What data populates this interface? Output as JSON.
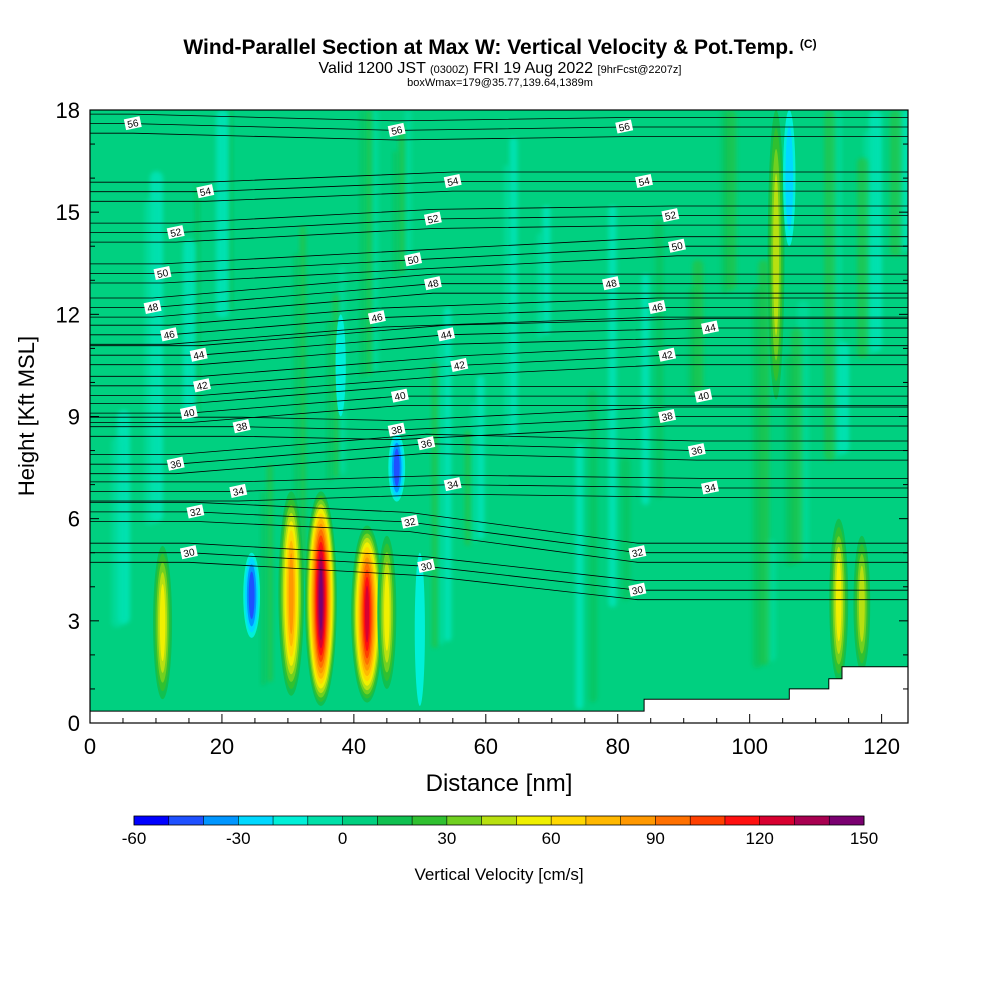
{
  "header": {
    "title": "Wind-Parallel Section at Max W: Vertical Velocity & Pot.Temp.",
    "title_tag": "(C)",
    "valid_prefix": "Valid 1200 JST",
    "valid_utc": "(0300Z)",
    "valid_date": "FRI 19 Aug 2022",
    "forecast_tag": "[9hrFcst@2207z]",
    "box_info": "boxWmax=179@35.77,139.64,1389m"
  },
  "chart_data": {
    "type": "heatmap",
    "xlabel": "Distance [nm]",
    "ylabel": "Height [Kft MSL]",
    "xlim": [
      0,
      124
    ],
    "ylim": [
      0,
      18
    ],
    "x_ticks": [
      0,
      20,
      40,
      60,
      80,
      100,
      120
    ],
    "y_ticks": [
      0,
      3,
      6,
      9,
      12,
      15,
      18
    ],
    "grid": false,
    "background_value": 0,
    "updrafts": [
      {
        "x": 11,
        "bottom": 0.7,
        "top": 5.2,
        "peak": 50
      },
      {
        "x": 30.5,
        "bottom": 0.8,
        "top": 6.8,
        "peak": 80
      },
      {
        "x": 35,
        "bottom": 0.5,
        "top": 6.8,
        "peak": 145
      },
      {
        "x": 42,
        "bottom": 0.6,
        "top": 5.8,
        "peak": 125
      },
      {
        "x": 45,
        "bottom": 1.0,
        "top": 5.5,
        "peak": 50
      },
      {
        "x": 113.5,
        "bottom": 1.2,
        "top": 6.0,
        "peak": 50
      },
      {
        "x": 117,
        "bottom": 1.5,
        "top": 5.5,
        "peak": 45
      },
      {
        "x": 104,
        "bottom": 9.5,
        "top": 18,
        "peak": 40
      }
    ],
    "downdrafts": [
      {
        "x": 24.5,
        "bottom": 2.5,
        "top": 5,
        "peak": -45
      },
      {
        "x": 46.5,
        "bottom": 6.5,
        "top": 8.5,
        "peak": -45
      },
      {
        "x": 38,
        "bottom": 9,
        "top": 12,
        "peak": -15
      },
      {
        "x": 106,
        "bottom": 14,
        "top": 18,
        "peak": -25
      },
      {
        "x": 50,
        "bottom": 0.5,
        "top": 5,
        "peak": -15
      }
    ],
    "pot_temp_labels": [
      {
        "v": "56",
        "x": 6.5,
        "y": 17.6
      },
      {
        "v": "56",
        "x": 46.5,
        "y": 17.4
      },
      {
        "v": "56",
        "x": 81,
        "y": 17.5
      },
      {
        "v": "54",
        "x": 17.5,
        "y": 15.6
      },
      {
        "v": "54",
        "x": 55,
        "y": 15.9
      },
      {
        "v": "54",
        "x": 84,
        "y": 15.9
      },
      {
        "v": "52",
        "x": 13,
        "y": 14.4
      },
      {
        "v": "52",
        "x": 52,
        "y": 14.8
      },
      {
        "v": "52",
        "x": 88,
        "y": 14.9
      },
      {
        "v": "50",
        "x": 11,
        "y": 13.2
      },
      {
        "v": "50",
        "x": 49,
        "y": 13.6
      },
      {
        "v": "50",
        "x": 89,
        "y": 14.0
      },
      {
        "v": "48",
        "x": 9.5,
        "y": 12.2
      },
      {
        "v": "48",
        "x": 52,
        "y": 12.9
      },
      {
        "v": "48",
        "x": 79,
        "y": 12.9
      },
      {
        "v": "46",
        "x": 12,
        "y": 11.4
      },
      {
        "v": "46",
        "x": 43.5,
        "y": 11.9
      },
      {
        "v": "46",
        "x": 86,
        "y": 12.2
      },
      {
        "v": "44",
        "x": 16.5,
        "y": 10.8
      },
      {
        "v": "44",
        "x": 54,
        "y": 11.4
      },
      {
        "v": "44",
        "x": 94,
        "y": 11.6
      },
      {
        "v": "42",
        "x": 17,
        "y": 9.9
      },
      {
        "v": "42",
        "x": 56,
        "y": 10.5
      },
      {
        "v": "42",
        "x": 87.5,
        "y": 10.8
      },
      {
        "v": "40",
        "x": 15,
        "y": 9.1
      },
      {
        "v": "40",
        "x": 47,
        "y": 9.6
      },
      {
        "v": "40",
        "x": 93,
        "y": 9.6
      },
      {
        "v": "38",
        "x": 23,
        "y": 8.7
      },
      {
        "v": "38",
        "x": 46.5,
        "y": 8.6
      },
      {
        "v": "38",
        "x": 87.5,
        "y": 9.0
      },
      {
        "v": "36",
        "x": 13,
        "y": 7.6
      },
      {
        "v": "36",
        "x": 51,
        "y": 8.2
      },
      {
        "v": "36",
        "x": 92,
        "y": 8.0
      },
      {
        "v": "34",
        "x": 22.5,
        "y": 6.8
      },
      {
        "v": "34",
        "x": 55,
        "y": 7.0
      },
      {
        "v": "34",
        "x": 94,
        "y": 6.9
      },
      {
        "v": "32",
        "x": 16,
        "y": 6.2
      },
      {
        "v": "32",
        "x": 48.5,
        "y": 5.9
      },
      {
        "v": "32",
        "x": 83,
        "y": 5.0
      },
      {
        "v": "30",
        "x": 15,
        "y": 5.0
      },
      {
        "v": "30",
        "x": 51,
        "y": 4.6
      },
      {
        "v": "30",
        "x": 83,
        "y": 3.9
      }
    ],
    "terrain": [
      {
        "x": 0,
        "y": 0.35
      },
      {
        "x": 84,
        "y": 0.35
      },
      {
        "x": 84,
        "y": 0.7
      },
      {
        "x": 106,
        "y": 0.7
      },
      {
        "x": 106,
        "y": 1.0
      },
      {
        "x": 112,
        "y": 1.0
      },
      {
        "x": 112,
        "y": 1.3
      },
      {
        "x": 114,
        "y": 1.3
      },
      {
        "x": 114,
        "y": 1.65
      },
      {
        "x": 124,
        "y": 1.65
      }
    ],
    "colorbar": {
      "label": "Vertical Velocity [cm/s]",
      "min": -60,
      "max": 150,
      "step": 10,
      "tick_labels": [
        "-60",
        "-30",
        "0",
        "30",
        "60",
        "90",
        "120",
        "150"
      ],
      "colors": [
        "#0000ff",
        "#1e50ff",
        "#0096ff",
        "#00d8ff",
        "#00f0d8",
        "#00e0a8",
        "#00d080",
        "#10c050",
        "#30c030",
        "#70d020",
        "#b8e010",
        "#f0f000",
        "#ffd800",
        "#ffb800",
        "#ff9800",
        "#ff7000",
        "#ff4000",
        "#ff1010",
        "#d80030",
        "#a80050",
        "#7a0070"
      ]
    }
  }
}
